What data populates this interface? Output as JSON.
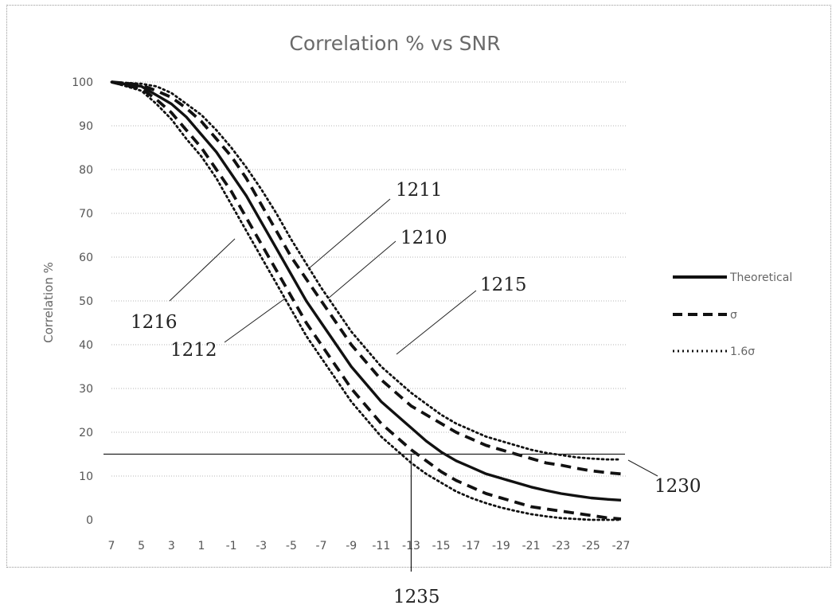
{
  "chart_data": {
    "type": "line",
    "title": "Correlation % vs SNR",
    "xlabel": "",
    "ylabel": "Correlation %",
    "x_categories": [
      "7",
      "5",
      "3",
      "1",
      "-1",
      "-3",
      "-5",
      "-7",
      "-9",
      "-11",
      "-13",
      "-15",
      "-17",
      "-19",
      "-21",
      "-23",
      "-25",
      "-27"
    ],
    "x": [
      7,
      6,
      5,
      4,
      3,
      2,
      1,
      0,
      -1,
      -2,
      -3,
      -4,
      -5,
      -6,
      -7,
      -8,
      -9,
      -10,
      -11,
      -12,
      -13,
      -14,
      -15,
      -16,
      -17,
      -18,
      -19,
      -20,
      -21,
      -22,
      -23,
      -24,
      -25,
      -26,
      -27
    ],
    "ylim": [
      0,
      100
    ],
    "yticks": [
      0,
      10,
      20,
      30,
      40,
      50,
      60,
      70,
      80,
      90,
      100
    ],
    "grid": "horizontal-dotted",
    "legend_position": "right",
    "series": [
      {
        "name": "Theoretical",
        "style": "solid",
        "values": [
          100,
          99.5,
          99,
          97,
          95,
          92,
          88,
          84,
          79,
          74,
          68,
          62,
          56,
          50,
          45,
          40,
          35,
          31,
          27,
          24,
          21,
          18,
          15.5,
          13.5,
          12,
          10.5,
          9.5,
          8.5,
          7.5,
          6.7,
          6,
          5.5,
          5,
          4.7,
          4.5
        ]
      },
      {
        "name": "σ",
        "style": "dashed",
        "upper": true,
        "values": [
          100,
          99.7,
          99.3,
          98,
          96.5,
          94,
          91,
          87,
          83,
          78,
          72,
          66,
          60,
          55,
          50,
          45,
          40,
          36,
          32,
          29,
          26,
          24,
          22,
          20,
          18.5,
          17,
          16,
          15,
          14,
          13,
          12.5,
          11.8,
          11.2,
          10.8,
          10.5
        ]
      },
      {
        "name": "σ",
        "style": "dashed",
        "upper": false,
        "values": [
          100,
          99.2,
          98.5,
          96,
          93,
          89,
          85,
          80,
          75,
          69,
          63,
          57,
          51,
          45,
          40,
          35,
          30,
          26,
          22,
          19,
          16,
          13.5,
          11,
          9,
          7.5,
          6,
          5,
          4,
          3,
          2.5,
          2,
          1.5,
          1,
          0.5,
          0.2
        ]
      },
      {
        "name": "1.6σ",
        "style": "dotted",
        "upper": true,
        "values": [
          100,
          99.8,
          99.6,
          99,
          97.5,
          95,
          92.5,
          89,
          85,
          80.5,
          75.5,
          70,
          64,
          58.5,
          53,
          48,
          43,
          39,
          35,
          32,
          29,
          26.5,
          24,
          22,
          20.5,
          19,
          18,
          17,
          16,
          15.3,
          14.8,
          14.3,
          14,
          13.8,
          13.8
        ]
      },
      {
        "name": "1.6σ",
        "style": "dotted",
        "upper": false,
        "values": [
          100,
          99,
          98,
          95,
          91.5,
          87,
          83,
          78,
          72,
          66,
          60,
          54,
          48,
          42,
          37,
          32,
          27,
          23,
          19,
          16,
          13,
          10.5,
          8.5,
          6.5,
          5,
          3.8,
          2.8,
          2,
          1.3,
          0.8,
          0.4,
          0.2,
          0,
          0,
          0
        ]
      }
    ],
    "threshold_y": 15,
    "threshold_x": -13,
    "reference_labels": [
      "1211",
      "1210",
      "1215",
      "1216",
      "1212",
      "1230",
      "1235"
    ]
  },
  "legend": {
    "theoretical": "Theoretical",
    "sigma": "σ",
    "sigma16": "1.6σ"
  }
}
